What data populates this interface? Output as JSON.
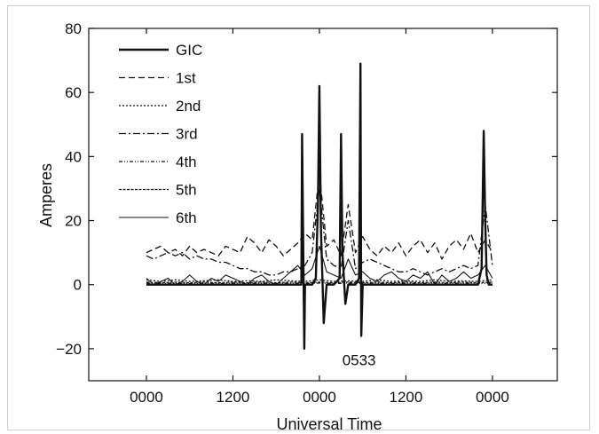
{
  "chart_data": {
    "type": "line",
    "title": "",
    "xlabel": "Universal Time",
    "ylabel": "Amperes",
    "ylim": [
      -30,
      80
    ],
    "yticks": [
      -20,
      0,
      20,
      40,
      60,
      80
    ],
    "xlim": [
      -8,
      57
    ],
    "xticks": [
      {
        "value": 0,
        "label": "0000"
      },
      {
        "value": 12,
        "label": "1200"
      },
      {
        "value": 24,
        "label": "0000"
      },
      {
        "value": 36,
        "label": "1200"
      },
      {
        "value": 48,
        "label": "0000"
      }
    ],
    "grid": false,
    "legend_position": "top-left",
    "annotations": [
      {
        "text": "0533",
        "x": 29.5,
        "y": -19
      }
    ],
    "series": [
      {
        "name": "GIC",
        "x": [
          0,
          2,
          4,
          6,
          8,
          10,
          12,
          14,
          16,
          18,
          20,
          21.5,
          21.6,
          21.9,
          22,
          22.5,
          23,
          23.5,
          23.8,
          24,
          24.2,
          24.6,
          25,
          25.5,
          26,
          26.8,
          27,
          27.2,
          27.6,
          28,
          28.5,
          29,
          29.5,
          29.6,
          29.7,
          29.8,
          30,
          30.5,
          31,
          32,
          34,
          36,
          38,
          40,
          42,
          44,
          45,
          46,
          46.5,
          46.8,
          47,
          47.2,
          47.5,
          48
        ],
        "y": [
          0,
          0,
          0,
          0,
          0,
          0,
          0,
          0,
          0,
          0,
          0,
          0,
          47,
          -20,
          0,
          0,
          0,
          2,
          25,
          62,
          18,
          -12,
          0,
          0,
          0,
          2,
          47,
          10,
          -6,
          0,
          0,
          0,
          2,
          35,
          69,
          -16,
          0,
          0,
          0,
          0,
          0,
          0,
          0,
          0,
          0,
          0,
          0,
          0,
          5,
          48,
          20,
          3,
          0,
          0
        ]
      },
      {
        "name": "1st",
        "x": [
          0,
          1,
          2,
          3,
          4,
          5,
          6,
          7,
          8,
          9,
          10,
          11,
          12,
          13,
          14,
          15,
          16,
          17,
          18,
          19,
          20,
          21,
          22,
          23,
          24,
          25,
          26,
          27,
          28,
          29,
          30,
          31,
          32,
          33,
          34,
          35,
          36,
          37,
          38,
          39,
          40,
          41,
          42,
          43,
          44,
          45,
          46,
          47,
          48
        ],
        "y": [
          10,
          11,
          12,
          10,
          11,
          9,
          12,
          10,
          11,
          10,
          9,
          12,
          11,
          10,
          15,
          13,
          10,
          14,
          12,
          9,
          11,
          13,
          16,
          14,
          35,
          12,
          14,
          9,
          25,
          10,
          15,
          11,
          9,
          12,
          10,
          13,
          9,
          12,
          14,
          10,
          13,
          8,
          12,
          14,
          11,
          16,
          10,
          14,
          10
        ]
      },
      {
        "name": "2nd",
        "x": [
          0,
          2,
          4,
          6,
          8,
          10,
          12,
          14,
          16,
          18,
          20,
          22,
          24,
          26,
          28,
          30,
          32,
          34,
          36,
          38,
          40,
          42,
          44,
          46,
          48
        ],
        "y": [
          1.5,
          1.0,
          1.5,
          1.0,
          1.2,
          1.5,
          1.0,
          1.2,
          1.0,
          1.5,
          1.2,
          1.0,
          1.5,
          1.0,
          1.2,
          1.0,
          1.5,
          1.0,
          1.2,
          1.0,
          1.5,
          1.0,
          1.2,
          1.0,
          1.5
        ]
      },
      {
        "name": "3rd",
        "x": [
          0,
          1,
          2,
          3,
          4,
          5,
          6,
          7,
          8,
          9,
          10,
          11,
          12,
          13,
          14,
          15,
          16,
          17,
          18,
          19,
          20,
          21,
          22,
          23,
          24,
          25,
          26,
          27,
          28,
          29,
          30,
          31,
          32,
          33,
          34,
          35,
          36,
          37,
          38,
          39,
          40,
          41,
          42,
          43,
          44,
          45,
          46,
          47,
          48
        ],
        "y": [
          9,
          8,
          9,
          10,
          9,
          10,
          8,
          9,
          8,
          8,
          7,
          7,
          6,
          5,
          5,
          4,
          4,
          3,
          3,
          4,
          4,
          5,
          6,
          10,
          30,
          8,
          6,
          5,
          20,
          5,
          7,
          8,
          7,
          6,
          5,
          4,
          4,
          5,
          4,
          3,
          4,
          5,
          4,
          5,
          6,
          5,
          6,
          25,
          6
        ]
      },
      {
        "name": "4th",
        "x": [
          0,
          2,
          4,
          6,
          8,
          10,
          12,
          14,
          16,
          18,
          20,
          22,
          24,
          26,
          28,
          30,
          32,
          34,
          36,
          38,
          40,
          42,
          44,
          46,
          48
        ],
        "y": [
          0.5,
          0.3,
          0.5,
          0.3,
          0.5,
          0.3,
          0.5,
          0.3,
          0.5,
          0.3,
          0.5,
          0.3,
          0.5,
          0.3,
          0.5,
          0.3,
          0.5,
          0.3,
          0.5,
          0.3,
          0.5,
          0.3,
          0.5,
          0.3,
          0.5
        ]
      },
      {
        "name": "5th",
        "x": [
          0,
          2,
          4,
          6,
          8,
          10,
          12,
          14,
          16,
          18,
          20,
          22,
          24,
          26,
          28,
          30,
          32,
          34,
          36,
          38,
          40,
          42,
          44,
          46,
          48
        ],
        "y": [
          0.8,
          0.6,
          0.8,
          0.6,
          0.8,
          0.6,
          0.8,
          0.6,
          0.8,
          0.6,
          0.8,
          0.6,
          0.8,
          0.6,
          0.8,
          0.6,
          0.8,
          0.6,
          0.8,
          0.6,
          0.8,
          0.6,
          0.8,
          0.6,
          0.8
        ]
      },
      {
        "name": "6th",
        "x": [
          0,
          1,
          2,
          3,
          4,
          5,
          6,
          7,
          8,
          9,
          10,
          11,
          12,
          13,
          14,
          15,
          16,
          17,
          18,
          19,
          20,
          21,
          22,
          23,
          24,
          25,
          26,
          27,
          28,
          29,
          30,
          31,
          32,
          33,
          34,
          35,
          36,
          37,
          38,
          39,
          40,
          41,
          42,
          43,
          44,
          45,
          46,
          47,
          48
        ],
        "y": [
          2,
          0,
          1,
          2,
          0,
          1,
          3,
          1,
          0,
          2,
          1,
          3,
          2,
          1,
          0,
          2,
          3,
          1,
          0,
          2,
          4,
          6,
          3,
          5,
          12,
          4,
          3,
          2,
          8,
          3,
          4,
          2,
          1,
          3,
          4,
          2,
          1,
          3,
          2,
          4,
          0,
          3,
          1,
          2,
          4,
          2,
          3,
          6,
          2
        ]
      }
    ]
  }
}
